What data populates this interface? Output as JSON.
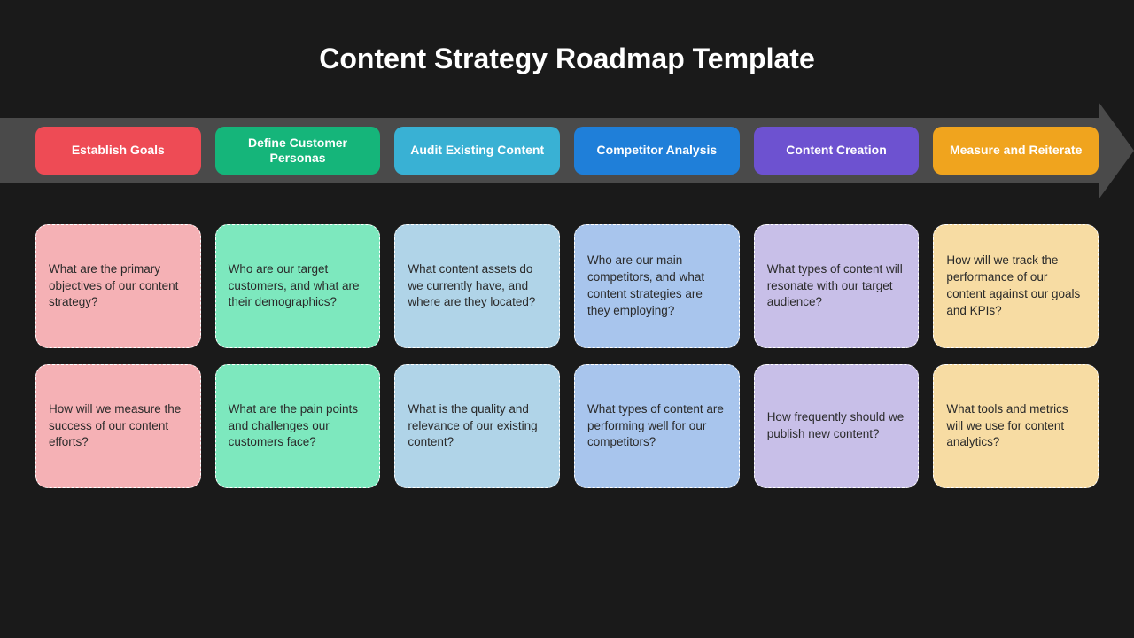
{
  "title": "Content Strategy Roadmap Template",
  "background_color": "#1a1a1a",
  "arrow_color": "#4a4a4a",
  "title_color": "#ffffff",
  "title_fontsize": 32,
  "header_fontsize": 14,
  "card_fontsize": 13.5,
  "card_border_color": "#ffffff",
  "card_border_style": "dashed",
  "card_border_radius": 14,
  "columns": [
    {
      "header": "Establish Goals",
      "header_color": "#ee4b55",
      "card_color": "#f5b1b5",
      "cards": [
        "What are the primary objectives of our content strategy?",
        "How will we measure the success of our content efforts?"
      ]
    },
    {
      "header": "Define Customer Personas",
      "header_color": "#15b57a",
      "card_color": "#7de8be",
      "cards": [
        "Who are our target customers, and what are their demographics?",
        "What are the pain points and challenges our customers face?"
      ]
    },
    {
      "header": "Audit Existing Content",
      "header_color": "#39b1d4",
      "card_color": "#b0d4e8",
      "cards": [
        "What content assets do we currently have, and where are they located?",
        "What is the quality and relevance of our existing content?"
      ]
    },
    {
      "header": "Competitor Analysis",
      "header_color": "#1f7fd9",
      "card_color": "#a8c5ed",
      "cards": [
        "Who are our main competitors, and what content strategies are they employing?",
        "What types of content are performing well for our competitors?"
      ]
    },
    {
      "header": "Content Creation",
      "header_color": "#6d52d0",
      "card_color": "#c8bfe8",
      "cards": [
        "What types of content will resonate with our target audience?",
        "How frequently should we publish new content?"
      ]
    },
    {
      "header": "Measure and Reiterate",
      "header_color": "#f0a41e",
      "card_color": "#f7dca3",
      "cards": [
        "How will we track the performance of our content against our goals and KPIs?",
        "What tools and metrics will we use for content analytics?"
      ]
    }
  ]
}
